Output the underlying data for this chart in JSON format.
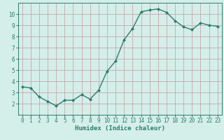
{
  "x": [
    0,
    1,
    2,
    3,
    4,
    5,
    6,
    7,
    8,
    9,
    10,
    11,
    12,
    13,
    14,
    15,
    16,
    17,
    18,
    19,
    20,
    21,
    22,
    23
  ],
  "y": [
    3.5,
    3.4,
    2.6,
    2.2,
    1.8,
    2.3,
    2.3,
    2.8,
    2.4,
    3.2,
    4.9,
    5.8,
    7.7,
    8.7,
    10.2,
    10.35,
    10.45,
    10.15,
    9.4,
    8.85,
    8.6,
    9.2,
    9.0,
    8.9
  ],
  "line_color": "#2e7d6e",
  "marker": "D",
  "markersize": 2.0,
  "linewidth": 1.0,
  "xlabel": "Humidex (Indice chaleur)",
  "xlim": [
    -0.5,
    23.5
  ],
  "ylim": [
    1.0,
    11.0
  ],
  "yticks": [
    2,
    3,
    4,
    5,
    6,
    7,
    8,
    9,
    10
  ],
  "xticks": [
    0,
    1,
    2,
    3,
    4,
    5,
    6,
    7,
    8,
    9,
    10,
    11,
    12,
    13,
    14,
    15,
    16,
    17,
    18,
    19,
    20,
    21,
    22,
    23
  ],
  "bg_color": "#d4eeea",
  "grid_color_major": "#c8a8a8",
  "grid_color_minor": "#c8a8a8",
  "tick_color": "#2e7d6e",
  "label_color": "#2e7d6e",
  "xlabel_fontsize": 6.5,
  "tick_fontsize": 5.5
}
